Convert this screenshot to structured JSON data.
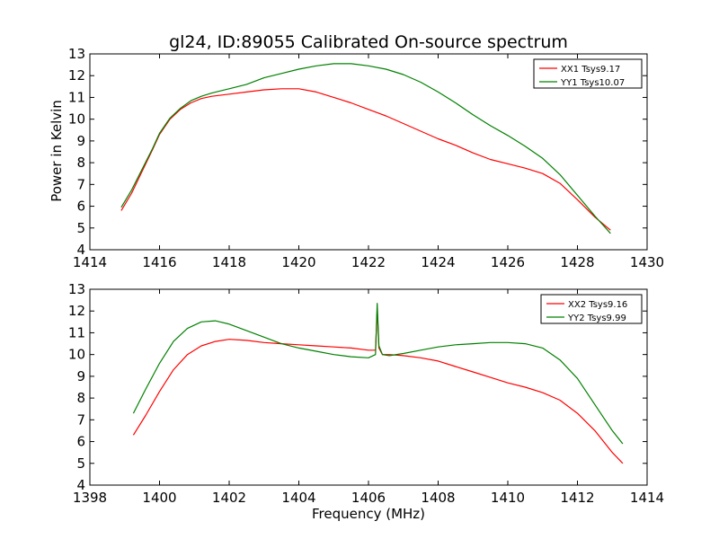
{
  "title": "gl24, ID:89055 Calibrated On-source spectrum",
  "chart_data": [
    {
      "type": "line",
      "title": "gl24, ID:89055 Calibrated On-source spectrum",
      "xlabel": "",
      "ylabel": "Power in Kelvin",
      "xlim": [
        1414,
        1430
      ],
      "ylim": [
        4,
        13
      ],
      "xticks": [
        "1414",
        "1416",
        "1418",
        "1420",
        "1422",
        "1424",
        "1426",
        "1428",
        "1430"
      ],
      "yticks": [
        "4",
        "5",
        "6",
        "7",
        "8",
        "9",
        "10",
        "11",
        "12",
        "13"
      ],
      "legend_position": "top-right",
      "series": [
        {
          "name": "XX1 Tsys9.17",
          "color": "#ff0000",
          "x": [
            1414.9,
            1415.2,
            1415.5,
            1415.8,
            1416.0,
            1416.3,
            1416.6,
            1416.9,
            1417.2,
            1417.5,
            1418.0,
            1418.5,
            1419.0,
            1419.5,
            1420.0,
            1420.5,
            1421.0,
            1421.5,
            1422.0,
            1422.5,
            1423.0,
            1423.5,
            1424.0,
            1424.5,
            1425.0,
            1425.5,
            1426.0,
            1426.5,
            1427.0,
            1427.5,
            1428.0,
            1428.5,
            1428.95
          ],
          "y": [
            5.8,
            6.6,
            7.6,
            8.6,
            9.3,
            10.0,
            10.45,
            10.75,
            10.95,
            11.05,
            11.15,
            11.25,
            11.35,
            11.4,
            11.4,
            11.25,
            11.0,
            10.75,
            10.45,
            10.15,
            9.8,
            9.45,
            9.1,
            8.8,
            8.45,
            8.15,
            7.95,
            7.75,
            7.5,
            7.05,
            6.3,
            5.5,
            4.9
          ]
        },
        {
          "name": "YY1 Tsys10.07",
          "color": "#008000",
          "x": [
            1414.9,
            1415.2,
            1415.5,
            1415.8,
            1416.0,
            1416.3,
            1416.6,
            1416.9,
            1417.2,
            1417.5,
            1418.0,
            1418.5,
            1419.0,
            1419.5,
            1420.0,
            1420.5,
            1421.0,
            1421.5,
            1422.0,
            1422.5,
            1423.0,
            1423.5,
            1424.0,
            1424.5,
            1425.0,
            1425.5,
            1426.0,
            1426.5,
            1427.0,
            1427.5,
            1428.0,
            1428.5,
            1428.95
          ],
          "y": [
            5.95,
            6.75,
            7.7,
            8.65,
            9.35,
            10.05,
            10.5,
            10.85,
            11.05,
            11.2,
            11.4,
            11.6,
            11.9,
            12.1,
            12.3,
            12.45,
            12.55,
            12.55,
            12.45,
            12.3,
            12.05,
            11.7,
            11.25,
            10.75,
            10.2,
            9.7,
            9.25,
            8.75,
            8.2,
            7.45,
            6.5,
            5.55,
            4.75
          ]
        }
      ]
    },
    {
      "type": "line",
      "title": "",
      "xlabel": "Frequency (MHz)",
      "ylabel": "",
      "xlim": [
        1398,
        1414
      ],
      "ylim": [
        4,
        13
      ],
      "xticks": [
        "1398",
        "1400",
        "1402",
        "1404",
        "1406",
        "1408",
        "1410",
        "1412",
        "1414"
      ],
      "yticks": [
        "4",
        "5",
        "6",
        "7",
        "8",
        "9",
        "10",
        "11",
        "12",
        "13"
      ],
      "legend_position": "top-right",
      "series": [
        {
          "name": "XX2 Tsys9.16",
          "color": "#ff0000",
          "x": [
            1399.25,
            1399.6,
            1400.0,
            1400.4,
            1400.8,
            1401.2,
            1401.6,
            1402.0,
            1402.5,
            1403.0,
            1403.5,
            1404.0,
            1404.5,
            1405.0,
            1405.5,
            1406.0,
            1406.2,
            1406.25,
            1406.3,
            1406.4,
            1406.6,
            1407.0,
            1407.5,
            1408.0,
            1408.5,
            1409.0,
            1409.5,
            1410.0,
            1410.5,
            1411.0,
            1411.5,
            1412.0,
            1412.5,
            1413.0,
            1413.3
          ],
          "y": [
            6.3,
            7.2,
            8.3,
            9.3,
            10.0,
            10.4,
            10.6,
            10.7,
            10.65,
            10.55,
            10.5,
            10.45,
            10.4,
            10.35,
            10.3,
            10.2,
            10.2,
            12.1,
            10.3,
            10.0,
            10.0,
            9.95,
            9.85,
            9.7,
            9.45,
            9.2,
            8.95,
            8.7,
            8.5,
            8.25,
            7.9,
            7.3,
            6.5,
            5.5,
            5.0
          ]
        },
        {
          "name": "YY2 Tsys9.99",
          "color": "#008000",
          "x": [
            1399.25,
            1399.6,
            1400.0,
            1400.4,
            1400.8,
            1401.2,
            1401.6,
            1402.0,
            1402.5,
            1403.0,
            1403.5,
            1404.0,
            1404.5,
            1405.0,
            1405.5,
            1406.0,
            1406.2,
            1406.25,
            1406.3,
            1406.4,
            1406.6,
            1407.0,
            1407.5,
            1408.0,
            1408.5,
            1409.0,
            1409.5,
            1410.0,
            1410.5,
            1411.0,
            1411.5,
            1412.0,
            1412.5,
            1413.0,
            1413.3
          ],
          "y": [
            7.3,
            8.4,
            9.6,
            10.6,
            11.2,
            11.5,
            11.55,
            11.4,
            11.1,
            10.8,
            10.5,
            10.3,
            10.15,
            10.0,
            9.9,
            9.85,
            10.0,
            12.35,
            10.4,
            10.0,
            9.95,
            10.05,
            10.2,
            10.35,
            10.45,
            10.5,
            10.55,
            10.55,
            10.5,
            10.3,
            9.75,
            8.9,
            7.7,
            6.5,
            5.9
          ]
        }
      ]
    }
  ]
}
